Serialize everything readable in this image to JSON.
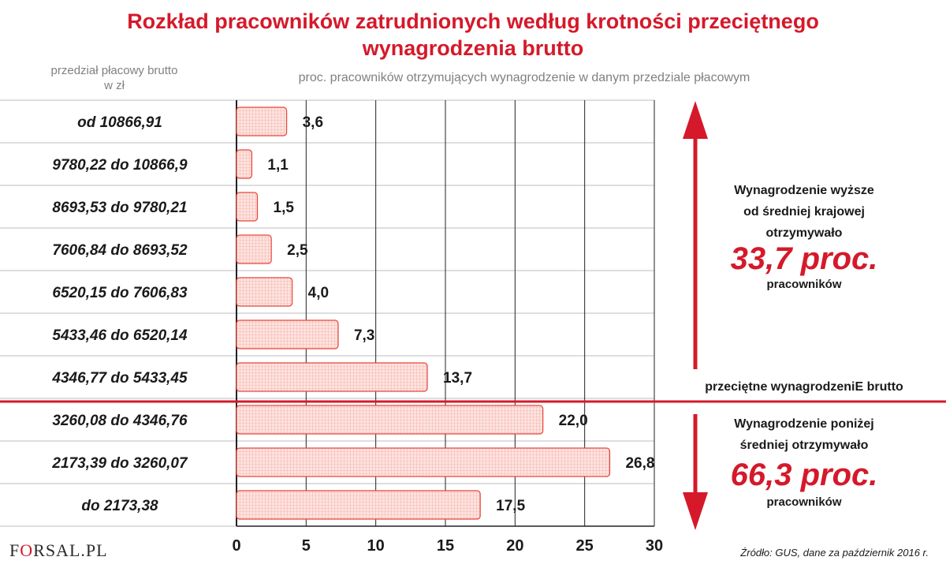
{
  "title_line1": "Rozkład  pracowników zatrudnionych  według  krotności przeciętnego",
  "title_line2": "wynagrodzenia brutto",
  "y_header_line1": "przedział płacowy brutto",
  "y_header_line2": "w zł",
  "x_header": "proc. pracowników otrzymujących wynagrodzenie w danym przedziale płacowym",
  "chart_data": {
    "type": "bar",
    "orientation": "horizontal",
    "categories": [
      "od 10866,91",
      "9780,22 do 10866,9",
      "8693,53 do 9780,21",
      "7606,84 do 8693,52",
      "6520,15 do 7606,83",
      "5433,46 do 6520,14",
      "4346,77 do 5433,45",
      "3260,08 do 4346,76",
      "2173,39 do 3260,07",
      "do 2173,38"
    ],
    "values": [
      3.6,
      1.1,
      1.5,
      2.5,
      4.0,
      7.3,
      13.7,
      22.0,
      26.8,
      17.5
    ],
    "value_labels": [
      "3,6",
      "1,1",
      "1,5",
      "2,5",
      "4,0",
      "7,3",
      "13,7",
      "22,0",
      "26,8",
      "17,5"
    ],
    "xlim": [
      0,
      30
    ],
    "xticks": [
      0,
      5,
      10,
      15,
      20,
      25,
      30
    ],
    "xtick_labels": [
      "0",
      "5",
      "10",
      "15",
      "20",
      "25",
      "30"
    ],
    "grid": true
  },
  "annotations": {
    "above_line1": "Wynagrodzenie wyższe",
    "above_line2": "od średniej krajowej",
    "above_line3": "otrzymywało",
    "above_value": "33,7 proc.",
    "above_unit": "pracowników",
    "average_label": "przeciętne wynagrodzeniE brutto",
    "below_line1": "Wynagrodzenie poniżej",
    "below_line2": "średniej otrzymywało",
    "below_value": "66,3 proc.",
    "below_unit": "pracowników"
  },
  "source": "Źródło: GUS, dane za październik 2016 r.",
  "logo_mark": "O",
  "logo_before": "F",
  "logo_after": "RSAL.PL",
  "colors": {
    "accent": "#d5192a",
    "bar_fill": "#fbd6d2",
    "bar_stroke": "#e8443a",
    "grid": "#222222"
  }
}
